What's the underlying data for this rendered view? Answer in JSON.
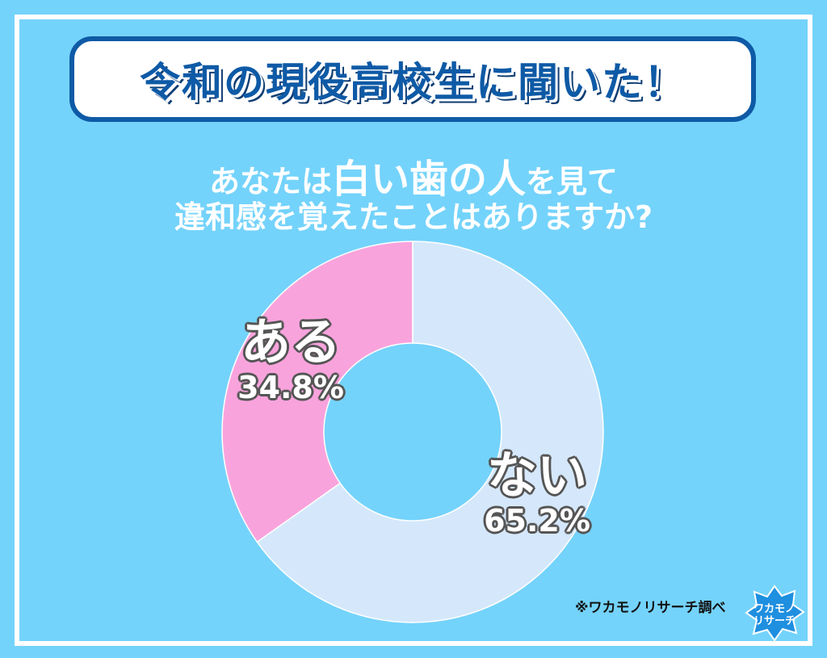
{
  "header": {
    "title": "令和の現役高校生に聞いた！"
  },
  "question": {
    "line1_pre": "あなたは",
    "line1_emph": "白い歯の人",
    "line1_post": "を見て",
    "line2": "違和感を覚えたことはありますか?"
  },
  "chart_data": {
    "type": "pie",
    "donut": true,
    "categories": [
      "ある",
      "ない"
    ],
    "values": [
      34.8,
      65.2
    ],
    "labels": [
      "34.8%",
      "65.2%"
    ],
    "colors": [
      "#f9a3dd",
      "#d5e8fb"
    ],
    "start": "top",
    "direction": "counterclockwise-for-first"
  },
  "source": "※ワカモノリサーチ調べ",
  "logo": {
    "text": "ワカモノリサーチ"
  },
  "colors": {
    "background": "#74d3fb",
    "title": "#0e5aa6"
  }
}
